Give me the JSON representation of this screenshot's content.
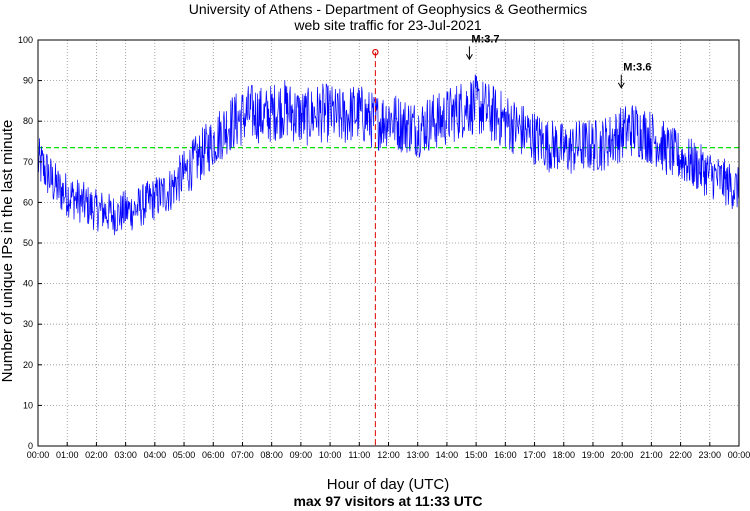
{
  "chart_data": {
    "type": "line",
    "title": "University of Athens - Department of Geophysics & Geothermics",
    "subtitle": "web site traffic for 23-Jul-2021",
    "xlabel": "Hour of day (UTC)",
    "xlabel_sub": "max 97 visitors at 11:33 UTC",
    "ylabel": "Number of unique IPs in the last minute",
    "xlim": [
      0,
      24
    ],
    "ylim": [
      0,
      100
    ],
    "grid": true,
    "x_tick_labels": [
      "00:00",
      "01:00",
      "02:00",
      "03:00",
      "04:00",
      "05:00",
      "06:00",
      "07:00",
      "08:00",
      "09:00",
      "10:00",
      "11:00",
      "12:00",
      "13:00",
      "14:00",
      "15:00",
      "16:00",
      "17:00",
      "18:00",
      "19:00",
      "20:00",
      "21:00",
      "22:00",
      "23:00",
      "00:00"
    ],
    "y_tick_labels": [
      "0",
      "10",
      "20",
      "30",
      "40",
      "50",
      "60",
      "70",
      "80",
      "90",
      "100"
    ],
    "series": [
      {
        "color": "#0000ff",
        "x": [
          0,
          0.25,
          0.5,
          0.75,
          1,
          1.25,
          1.5,
          1.75,
          2,
          2.25,
          2.5,
          2.75,
          3,
          3.25,
          3.5,
          3.75,
          4,
          4.25,
          4.5,
          4.75,
          5,
          5.25,
          5.5,
          5.75,
          6,
          6.25,
          6.5,
          6.75,
          7,
          7.25,
          7.5,
          7.75,
          8,
          8.25,
          8.5,
          8.75,
          9,
          9.25,
          9.5,
          9.75,
          10,
          10.25,
          10.5,
          10.75,
          11,
          11.25,
          11.5,
          11.75,
          12,
          12.25,
          12.5,
          12.75,
          13,
          13.25,
          13.5,
          13.75,
          14,
          14.25,
          14.5,
          14.75,
          15,
          15.25,
          15.5,
          15.75,
          16,
          16.25,
          16.5,
          16.75,
          17,
          17.25,
          17.5,
          17.75,
          18,
          18.25,
          18.5,
          18.75,
          19,
          19.25,
          19.5,
          19.75,
          20,
          20.25,
          20.5,
          20.75,
          21,
          21.25,
          21.5,
          21.75,
          22,
          22.25,
          22.5,
          22.75,
          23,
          23.25,
          23.5,
          23.75,
          24
        ],
        "values": [
          70,
          68,
          65,
          63,
          62,
          61,
          60,
          59,
          58,
          58,
          57,
          57,
          58,
          58,
          59,
          60,
          61,
          62,
          63,
          65,
          67,
          69,
          71,
          73,
          75,
          77,
          79,
          80,
          81,
          82,
          82,
          81,
          82,
          83,
          83,
          82,
          81,
          81,
          82,
          82,
          82,
          81,
          81,
          82,
          82,
          81,
          80,
          80,
          81,
          80,
          79,
          79,
          78,
          79,
          80,
          80,
          81,
          82,
          83,
          84,
          84,
          83,
          82,
          81,
          80,
          79,
          78,
          77,
          76,
          75,
          74,
          74,
          73,
          73,
          74,
          74,
          74,
          74,
          75,
          76,
          77,
          78,
          78,
          77,
          76,
          75,
          73,
          72,
          71,
          70,
          69,
          68,
          67,
          66,
          65,
          64,
          63
        ]
      }
    ],
    "mean_line": {
      "value": 73.5,
      "color": "#00e000"
    },
    "max_marker": {
      "x": 11.55,
      "y": 97,
      "color": "#dd0000"
    },
    "annotations": [
      {
        "text": "M:3.7",
        "x": 14.77,
        "y": 95
      },
      {
        "text": "M:3.6",
        "x": 19.97,
        "y": 88
      }
    ]
  }
}
